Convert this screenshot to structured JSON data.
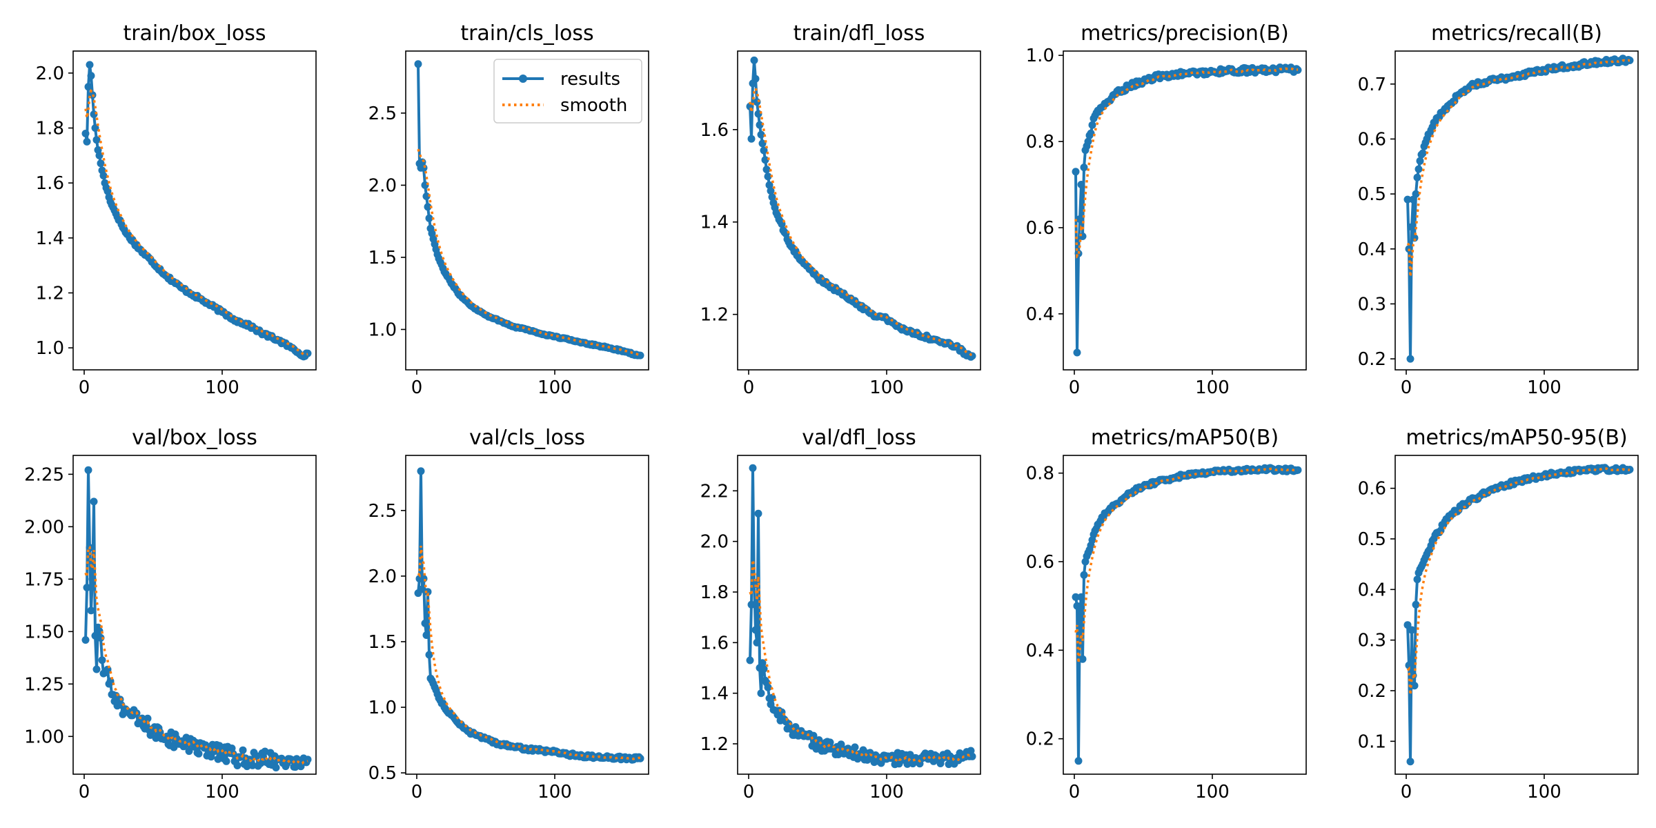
{
  "figure": {
    "legend": {
      "results": "results",
      "smooth": "smooth"
    },
    "colors": {
      "results": "#1f77b4",
      "smooth": "#ff7f0e",
      "axes": "#000000"
    }
  },
  "chart_data": [
    {
      "type": "line",
      "title": "train/box_loss",
      "xlabel": "",
      "ylabel": "",
      "xlim": [
        -8,
        168
      ],
      "ylim": [
        0.92,
        2.08
      ],
      "xticks": [
        0,
        100
      ],
      "yticks": [
        1.0,
        1.2,
        1.4,
        1.6,
        1.8,
        2.0
      ],
      "ytick_labels": [
        "1.0",
        "1.2",
        "1.4",
        "1.6",
        "1.8",
        "2.0"
      ],
      "legend": null,
      "anchors": [
        [
          1,
          1.78
        ],
        [
          2,
          1.75
        ],
        [
          3,
          1.95
        ],
        [
          4,
          2.03
        ],
        [
          5,
          1.99
        ],
        [
          6,
          1.92
        ],
        [
          7,
          1.85
        ],
        [
          8,
          1.8
        ],
        [
          10,
          1.72
        ],
        [
          15,
          1.6
        ],
        [
          20,
          1.52
        ],
        [
          30,
          1.42
        ],
        [
          40,
          1.36
        ],
        [
          50,
          1.31
        ],
        [
          60,
          1.26
        ],
        [
          70,
          1.22
        ],
        [
          80,
          1.19
        ],
        [
          90,
          1.16
        ],
        [
          100,
          1.13
        ],
        [
          110,
          1.1
        ],
        [
          120,
          1.08
        ],
        [
          130,
          1.05
        ],
        [
          140,
          1.03
        ],
        [
          150,
          1.0
        ],
        [
          160,
          0.97
        ],
        [
          162,
          0.98
        ]
      ],
      "noise": 0.006,
      "smooth_start": 1.87
    },
    {
      "type": "line",
      "title": "train/cls_loss",
      "xlabel": "",
      "ylabel": "",
      "xlim": [
        -8,
        168
      ],
      "ylim": [
        0.72,
        2.93
      ],
      "xticks": [
        0,
        100
      ],
      "yticks": [
        1.0,
        1.5,
        2.0,
        2.5
      ],
      "ytick_labels": [
        "1.0",
        "1.5",
        "2.0",
        "2.5"
      ],
      "legend": "upper right",
      "anchors": [
        [
          1,
          2.84
        ],
        [
          2,
          2.15
        ],
        [
          3,
          2.12
        ],
        [
          4,
          2.16
        ],
        [
          5,
          2.12
        ],
        [
          6,
          2.0
        ],
        [
          8,
          1.85
        ],
        [
          10,
          1.7
        ],
        [
          15,
          1.52
        ],
        [
          20,
          1.4
        ],
        [
          30,
          1.25
        ],
        [
          40,
          1.16
        ],
        [
          50,
          1.1
        ],
        [
          60,
          1.06
        ],
        [
          70,
          1.02
        ],
        [
          80,
          1.0
        ],
        [
          90,
          0.97
        ],
        [
          100,
          0.95
        ],
        [
          110,
          0.93
        ],
        [
          120,
          0.91
        ],
        [
          130,
          0.89
        ],
        [
          140,
          0.87
        ],
        [
          150,
          0.85
        ],
        [
          160,
          0.82
        ],
        [
          162,
          0.82
        ]
      ],
      "noise": 0.005,
      "smooth_start": 2.25
    },
    {
      "type": "line",
      "title": "train/dfl_loss",
      "xlabel": "",
      "ylabel": "",
      "xlim": [
        -8,
        168
      ],
      "ylim": [
        1.08,
        1.77
      ],
      "xticks": [
        0,
        100
      ],
      "yticks": [
        1.2,
        1.4,
        1.6
      ],
      "ytick_labels": [
        "1.2",
        "1.4",
        "1.6"
      ],
      "legend": null,
      "anchors": [
        [
          1,
          1.65
        ],
        [
          2,
          1.58
        ],
        [
          3,
          1.7
        ],
        [
          4,
          1.75
        ],
        [
          5,
          1.71
        ],
        [
          6,
          1.66
        ],
        [
          8,
          1.61
        ],
        [
          10,
          1.57
        ],
        [
          15,
          1.48
        ],
        [
          20,
          1.42
        ],
        [
          30,
          1.35
        ],
        [
          40,
          1.31
        ],
        [
          50,
          1.28
        ],
        [
          60,
          1.26
        ],
        [
          70,
          1.24
        ],
        [
          80,
          1.22
        ],
        [
          90,
          1.2
        ],
        [
          100,
          1.19
        ],
        [
          110,
          1.17
        ],
        [
          120,
          1.16
        ],
        [
          130,
          1.15
        ],
        [
          140,
          1.14
        ],
        [
          150,
          1.13
        ],
        [
          160,
          1.11
        ],
        [
          162,
          1.11
        ]
      ],
      "noise": 0.004,
      "smooth_start": 1.66
    },
    {
      "type": "line",
      "title": "metrics/precision(B)",
      "xlabel": "",
      "ylabel": "",
      "xlim": [
        -8,
        168
      ],
      "ylim": [
        0.27,
        1.01
      ],
      "xticks": [
        0,
        100
      ],
      "yticks": [
        0.4,
        0.6,
        0.8,
        1.0
      ],
      "ytick_labels": [
        "0.4",
        "0.6",
        "0.8",
        "1.0"
      ],
      "legend": null,
      "anchors": [
        [
          1,
          0.73
        ],
        [
          2,
          0.31
        ],
        [
          3,
          0.54
        ],
        [
          4,
          0.62
        ],
        [
          5,
          0.7
        ],
        [
          6,
          0.58
        ],
        [
          7,
          0.74
        ],
        [
          8,
          0.78
        ],
        [
          10,
          0.8
        ],
        [
          15,
          0.86
        ],
        [
          20,
          0.88
        ],
        [
          30,
          0.91
        ],
        [
          40,
          0.93
        ],
        [
          50,
          0.94
        ],
        [
          60,
          0.95
        ],
        [
          70,
          0.955
        ],
        [
          80,
          0.957
        ],
        [
          90,
          0.96
        ],
        [
          100,
          0.962
        ],
        [
          110,
          0.963
        ],
        [
          120,
          0.965
        ],
        [
          130,
          0.965
        ],
        [
          140,
          0.966
        ],
        [
          150,
          0.967
        ],
        [
          160,
          0.966
        ],
        [
          162,
          0.966
        ]
      ],
      "noise": 0.006,
      "smooth_start": 0.62
    },
    {
      "type": "line",
      "title": "metrics/recall(B)",
      "xlabel": "",
      "ylabel": "",
      "xlim": [
        -8,
        168
      ],
      "ylim": [
        0.18,
        0.76
      ],
      "xticks": [
        0,
        100
      ],
      "yticks": [
        0.2,
        0.3,
        0.4,
        0.5,
        0.6,
        0.7
      ],
      "ytick_labels": [
        "0.2",
        "0.3",
        "0.4",
        "0.5",
        "0.6",
        "0.7"
      ],
      "legend": null,
      "anchors": [
        [
          1,
          0.49
        ],
        [
          2,
          0.4
        ],
        [
          3,
          0.2
        ],
        [
          4,
          0.44
        ],
        [
          5,
          0.49
        ],
        [
          6,
          0.42
        ],
        [
          7,
          0.5
        ],
        [
          8,
          0.53
        ],
        [
          10,
          0.56
        ],
        [
          15,
          0.6
        ],
        [
          20,
          0.63
        ],
        [
          30,
          0.66
        ],
        [
          40,
          0.685
        ],
        [
          50,
          0.7
        ],
        [
          60,
          0.705
        ],
        [
          70,
          0.71
        ],
        [
          80,
          0.715
        ],
        [
          90,
          0.72
        ],
        [
          100,
          0.725
        ],
        [
          110,
          0.73
        ],
        [
          120,
          0.733
        ],
        [
          130,
          0.737
        ],
        [
          140,
          0.74
        ],
        [
          150,
          0.742
        ],
        [
          160,
          0.743
        ],
        [
          162,
          0.743
        ]
      ],
      "noise": 0.004,
      "smooth_start": 0.41
    },
    {
      "type": "line",
      "title": "val/box_loss",
      "xlabel": "",
      "ylabel": "",
      "xlim": [
        -8,
        168
      ],
      "ylim": [
        0.82,
        2.34
      ],
      "xticks": [
        0,
        100
      ],
      "yticks": [
        1.0,
        1.25,
        1.5,
        1.75,
        2.0,
        2.25
      ],
      "ytick_labels": [
        "1.00",
        "1.25",
        "1.50",
        "1.75",
        "2.00",
        "2.25"
      ],
      "legend": null,
      "anchors": [
        [
          1,
          1.46
        ],
        [
          2,
          1.71
        ],
        [
          3,
          2.27
        ],
        [
          4,
          1.9
        ],
        [
          5,
          1.6
        ],
        [
          6,
          1.75
        ],
        [
          7,
          2.12
        ],
        [
          8,
          1.48
        ],
        [
          9,
          1.32
        ],
        [
          10,
          1.52
        ],
        [
          12,
          1.47
        ],
        [
          14,
          1.3
        ],
        [
          16,
          1.31
        ],
        [
          20,
          1.2
        ],
        [
          25,
          1.16
        ],
        [
          30,
          1.13
        ],
        [
          35,
          1.1
        ],
        [
          40,
          1.07
        ],
        [
          50,
          1.03
        ],
        [
          60,
          1.0
        ],
        [
          70,
          0.97
        ],
        [
          80,
          0.95
        ],
        [
          90,
          0.93
        ],
        [
          100,
          0.92
        ],
        [
          110,
          0.9
        ],
        [
          120,
          0.89
        ],
        [
          130,
          0.89
        ],
        [
          140,
          0.89
        ],
        [
          150,
          0.89
        ],
        [
          160,
          0.89
        ],
        [
          162,
          0.89
        ]
      ],
      "noise": 0.04,
      "smooth_start": 1.78
    },
    {
      "type": "line",
      "title": "val/cls_loss",
      "xlabel": "",
      "ylabel": "",
      "xlim": [
        -8,
        168
      ],
      "ylim": [
        0.49,
        2.92
      ],
      "xticks": [
        0,
        100
      ],
      "yticks": [
        0.5,
        1.0,
        1.5,
        2.0,
        2.5
      ],
      "ytick_labels": [
        "0.5",
        "1.0",
        "1.5",
        "2.0",
        "2.5"
      ],
      "legend": null,
      "anchors": [
        [
          1,
          1.87
        ],
        [
          2,
          1.98
        ],
        [
          3,
          2.8
        ],
        [
          4,
          1.9
        ],
        [
          5,
          1.98
        ],
        [
          6,
          1.64
        ],
        [
          7,
          1.55
        ],
        [
          8,
          1.88
        ],
        [
          9,
          1.4
        ],
        [
          10,
          1.22
        ],
        [
          12,
          1.18
        ],
        [
          15,
          1.1
        ],
        [
          20,
          1.0
        ],
        [
          30,
          0.88
        ],
        [
          40,
          0.8
        ],
        [
          50,
          0.76
        ],
        [
          60,
          0.72
        ],
        [
          70,
          0.7
        ],
        [
          80,
          0.68
        ],
        [
          90,
          0.67
        ],
        [
          100,
          0.66
        ],
        [
          110,
          0.64
        ],
        [
          120,
          0.63
        ],
        [
          130,
          0.62
        ],
        [
          140,
          0.62
        ],
        [
          150,
          0.61
        ],
        [
          160,
          0.61
        ],
        [
          162,
          0.61
        ]
      ],
      "noise": 0.012,
      "smooth_start": 2.02
    },
    {
      "type": "line",
      "title": "val/dfl_loss",
      "xlabel": "",
      "ylabel": "",
      "xlim": [
        -8,
        168
      ],
      "ylim": [
        1.08,
        2.34
      ],
      "xticks": [
        0,
        100
      ],
      "yticks": [
        1.2,
        1.4,
        1.6,
        1.8,
        2.0,
        2.2
      ],
      "ytick_labels": [
        "1.2",
        "1.4",
        "1.6",
        "1.8",
        "2.0",
        "2.2"
      ],
      "legend": null,
      "anchors": [
        [
          1,
          1.53
        ],
        [
          2,
          1.75
        ],
        [
          3,
          2.29
        ],
        [
          4,
          1.83
        ],
        [
          5,
          1.65
        ],
        [
          6,
          1.6
        ],
        [
          7,
          2.11
        ],
        [
          8,
          1.5
        ],
        [
          9,
          1.4
        ],
        [
          10,
          1.52
        ],
        [
          12,
          1.45
        ],
        [
          15,
          1.38
        ],
        [
          20,
          1.33
        ],
        [
          25,
          1.3
        ],
        [
          30,
          1.26
        ],
        [
          40,
          1.23
        ],
        [
          50,
          1.2
        ],
        [
          60,
          1.18
        ],
        [
          70,
          1.17
        ],
        [
          80,
          1.16
        ],
        [
          90,
          1.15
        ],
        [
          100,
          1.14
        ],
        [
          110,
          1.14
        ],
        [
          120,
          1.14
        ],
        [
          130,
          1.14
        ],
        [
          140,
          1.14
        ],
        [
          150,
          1.14
        ],
        [
          160,
          1.15
        ],
        [
          162,
          1.15
        ]
      ],
      "noise": 0.025,
      "smooth_start": 1.8
    },
    {
      "type": "line",
      "title": "metrics/mAP50(B)",
      "xlabel": "",
      "ylabel": "",
      "xlim": [
        -8,
        168
      ],
      "ylim": [
        0.12,
        0.84
      ],
      "xticks": [
        0,
        100
      ],
      "yticks": [
        0.2,
        0.4,
        0.6,
        0.8
      ],
      "ytick_labels": [
        "0.2",
        "0.4",
        "0.6",
        "0.8"
      ],
      "legend": null,
      "anchors": [
        [
          1,
          0.52
        ],
        [
          2,
          0.5
        ],
        [
          3,
          0.15
        ],
        [
          4,
          0.49
        ],
        [
          5,
          0.52
        ],
        [
          6,
          0.38
        ],
        [
          7,
          0.57
        ],
        [
          8,
          0.6
        ],
        [
          10,
          0.62
        ],
        [
          15,
          0.67
        ],
        [
          20,
          0.7
        ],
        [
          30,
          0.73
        ],
        [
          40,
          0.755
        ],
        [
          50,
          0.77
        ],
        [
          60,
          0.78
        ],
        [
          70,
          0.788
        ],
        [
          80,
          0.795
        ],
        [
          90,
          0.8
        ],
        [
          100,
          0.803
        ],
        [
          110,
          0.805
        ],
        [
          120,
          0.806
        ],
        [
          130,
          0.807
        ],
        [
          140,
          0.808
        ],
        [
          150,
          0.808
        ],
        [
          160,
          0.807
        ],
        [
          162,
          0.807
        ]
      ],
      "noise": 0.004,
      "smooth_start": 0.44
    },
    {
      "type": "line",
      "title": "metrics/mAP50-95(B)",
      "xlabel": "",
      "ylabel": "",
      "xlim": [
        -8,
        168
      ],
      "ylim": [
        0.035,
        0.665
      ],
      "xticks": [
        0,
        100
      ],
      "yticks": [
        0.1,
        0.2,
        0.3,
        0.4,
        0.5,
        0.6
      ],
      "ytick_labels": [
        "0.1",
        "0.2",
        "0.3",
        "0.4",
        "0.5",
        "0.6"
      ],
      "legend": null,
      "anchors": [
        [
          1,
          0.33
        ],
        [
          2,
          0.25
        ],
        [
          3,
          0.06
        ],
        [
          4,
          0.32
        ],
        [
          5,
          0.23
        ],
        [
          6,
          0.21
        ],
        [
          7,
          0.37
        ],
        [
          8,
          0.42
        ],
        [
          10,
          0.44
        ],
        [
          15,
          0.47
        ],
        [
          20,
          0.5
        ],
        [
          30,
          0.54
        ],
        [
          40,
          0.565
        ],
        [
          50,
          0.58
        ],
        [
          60,
          0.595
        ],
        [
          70,
          0.605
        ],
        [
          80,
          0.613
        ],
        [
          90,
          0.62
        ],
        [
          100,
          0.625
        ],
        [
          110,
          0.63
        ],
        [
          120,
          0.633
        ],
        [
          130,
          0.635
        ],
        [
          140,
          0.637
        ],
        [
          150,
          0.637
        ],
        [
          160,
          0.637
        ],
        [
          162,
          0.637
        ]
      ],
      "noise": 0.004,
      "smooth_start": 0.24
    }
  ]
}
